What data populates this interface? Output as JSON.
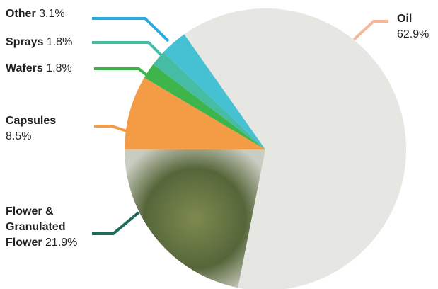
{
  "chart_data": {
    "type": "pie",
    "categories": [
      "Oil",
      "Flower & Granulated Flower",
      "Capsules",
      "Wafers",
      "Sprays",
      "Other"
    ],
    "values": [
      62.9,
      21.9,
      8.5,
      1.8,
      1.8,
      3.1
    ],
    "value_labels": [
      "62.9%",
      "21.9%",
      "8.5%",
      "1.8%",
      "1.8%",
      "3.1%"
    ],
    "colors": [
      "#e6e6e3",
      "#5d6b3c",
      "#f39c45",
      "#3db54a",
      "#45bca3",
      "#45c1d3"
    ]
  }
}
